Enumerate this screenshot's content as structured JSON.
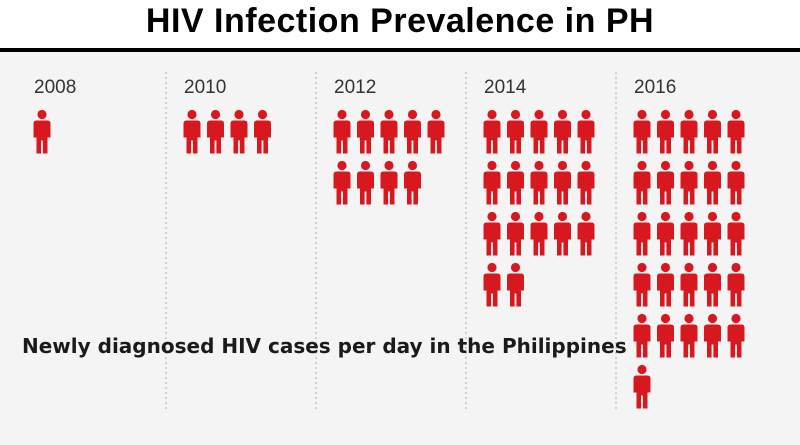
{
  "header": {
    "title": "HIV Infection Prevalence in PH"
  },
  "colors": {
    "person": "#d7191f",
    "divider": "#b8b8b8",
    "background": "#f4f4f4"
  },
  "chart_data": {
    "type": "pictogram",
    "title": "HIV Infection Prevalence in PH",
    "subtitle": "Newly diagnosed HIV cases per day in the Philippines",
    "icon": "person-icon",
    "categories": [
      "2008",
      "2010",
      "2012",
      "2014",
      "2016"
    ],
    "values": [
      1,
      4,
      9,
      17,
      26
    ],
    "icons_per_row": 5
  }
}
